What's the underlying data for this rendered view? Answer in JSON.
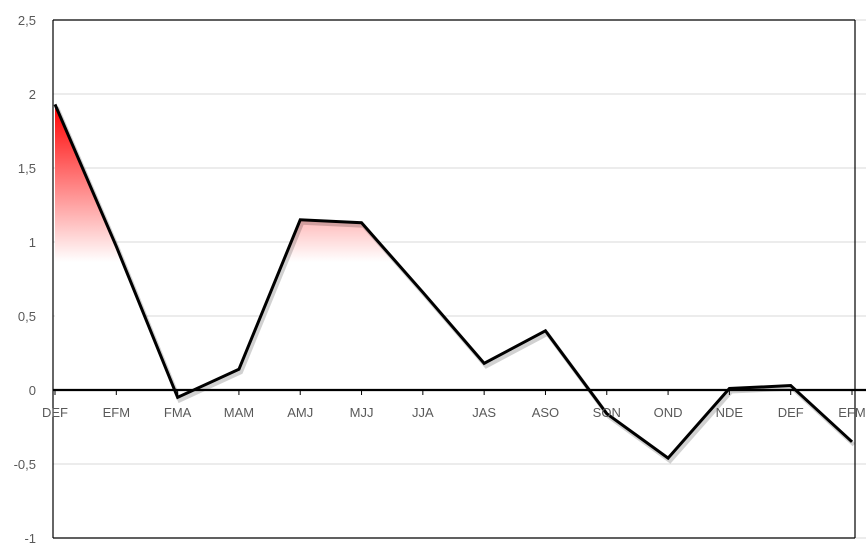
{
  "chart_data": {
    "type": "area",
    "title": "",
    "xlabel": "",
    "ylabel": "",
    "categories": [
      "DEF",
      "EFM",
      "FMA",
      "MAM",
      "AMJ",
      "MJJ",
      "JJA",
      "JAS",
      "ASO",
      "SON",
      "OND",
      "NDE",
      "DEF",
      "EFM"
    ],
    "series": [
      {
        "values": [
          1.93,
          0.97,
          -0.05,
          0.14,
          1.15,
          1.13,
          0.66,
          0.18,
          0.4,
          -0.16,
          -0.46,
          0.01,
          0.03,
          -0.35
        ]
      }
    ],
    "ylim": [
      -1,
      2.5
    ],
    "yticks": [
      2.5,
      2,
      1.5,
      1,
      0.5,
      0,
      -0.5,
      -1
    ],
    "ytick_labels": [
      "2,5",
      "2",
      "1,5",
      "1",
      "0,5",
      "0",
      "-0,5",
      "-1"
    ],
    "grid": true,
    "colors": {
      "line": "#000000",
      "fill_top": "#ff0000",
      "fill_bottom": "#ffffff",
      "grid": "#d9d9d9",
      "axis": "#000000"
    }
  }
}
